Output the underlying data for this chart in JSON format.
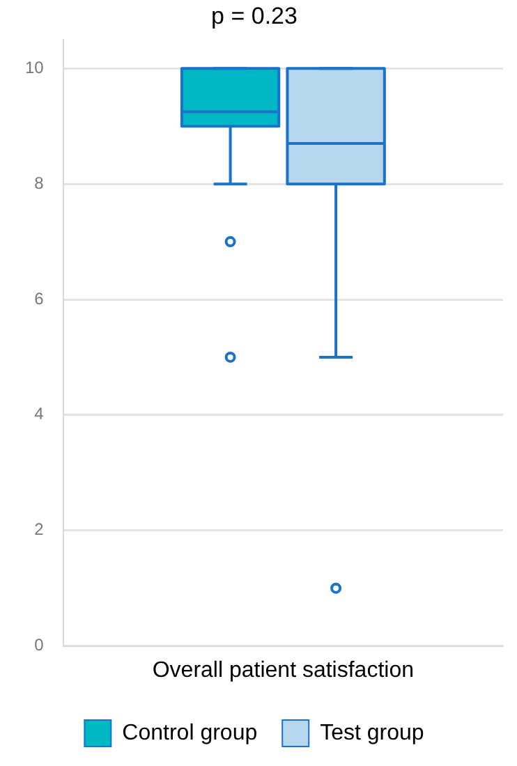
{
  "chart_data": {
    "type": "box",
    "title": "p = 0.23",
    "categories": [
      "Overall patient satisfaction"
    ],
    "series": [
      {
        "name": "Control group",
        "color": "#00b8c4",
        "boxes": [
          {
            "low": 8,
            "q1": 9,
            "median": 9.25,
            "q3": 10,
            "high": 10,
            "outliers": [
              7,
              5
            ]
          }
        ]
      },
      {
        "name": "Test group",
        "color": "#b6d7ee",
        "boxes": [
          {
            "low": 5,
            "q1": 8,
            "median": 8.7,
            "q3": 10,
            "high": 10,
            "outliers": [
              1
            ]
          }
        ]
      }
    ],
    "ylim": [
      0,
      10.5
    ],
    "yticks": [
      0,
      2,
      4,
      6,
      8,
      10
    ],
    "grid": "y",
    "legend": "bottom",
    "marker": "circle"
  }
}
